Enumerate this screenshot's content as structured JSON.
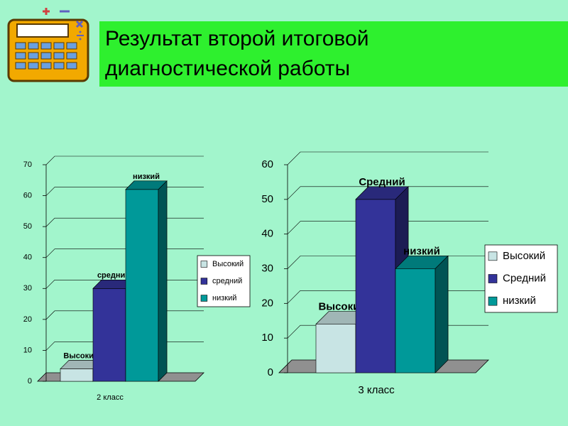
{
  "title": "Результат второй итоговой диагностической работы",
  "chart_data": [
    {
      "type": "bar3d",
      "categories": [
        "2 класс"
      ],
      "series": [
        {
          "name": "Высокий",
          "color": "#c8e4e4",
          "values": [
            4
          ]
        },
        {
          "name": "средний",
          "color": "#333399",
          "values": [
            30
          ]
        },
        {
          "name": "низкий",
          "color": "#009999",
          "values": [
            62
          ]
        }
      ],
      "ylim": [
        0,
        70
      ],
      "yticks": [
        0,
        10,
        20,
        30,
        40,
        50,
        60,
        70
      ],
      "grid": true,
      "legend": "right"
    },
    {
      "type": "bar3d",
      "categories": [
        "3 класс"
      ],
      "series": [
        {
          "name": "Высокий",
          "color": "#c8e4e4",
          "values": [
            14
          ]
        },
        {
          "name": "Средний",
          "color": "#333399",
          "values": [
            50
          ]
        },
        {
          "name": "низкий",
          "color": "#009999",
          "values": [
            30
          ]
        }
      ],
      "ylim": [
        0,
        60
      ],
      "yticks": [
        0,
        10,
        20,
        30,
        40,
        50,
        60
      ],
      "grid": true,
      "legend": "right"
    }
  ]
}
